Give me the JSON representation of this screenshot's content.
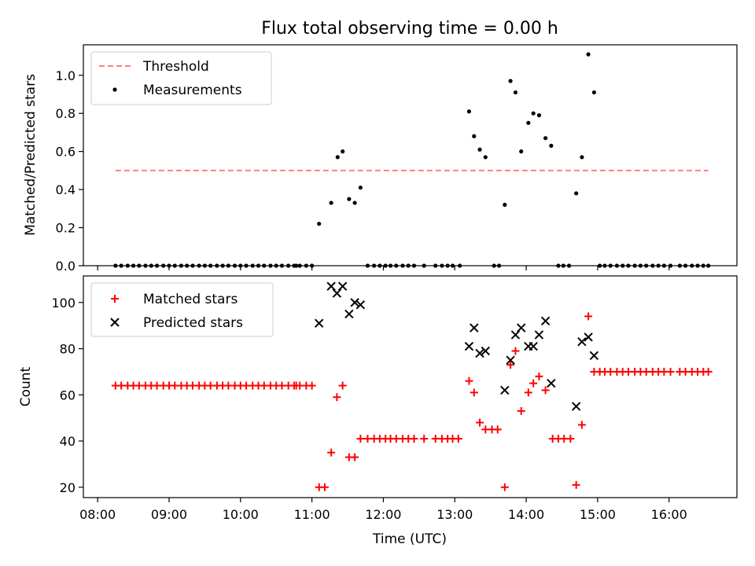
{
  "figure": {
    "title": "Flux total observing time = 0.00 h"
  },
  "chart_data": [
    {
      "type": "scatter",
      "title": "Flux total observing time = 0.00 h",
      "xlabel": "",
      "ylabel": "Matched/Predicted stars",
      "x_unit": "hours since 00:00 UTC",
      "xlim": [
        7.8,
        16.95
      ],
      "ylim": [
        0,
        1.16
      ],
      "y_ticks": [
        "0.0",
        "0.2",
        "0.4",
        "0.6",
        "0.8",
        "1.0"
      ],
      "legend": {
        "position": "upper-left",
        "entries": [
          "Threshold",
          "Measurements"
        ]
      },
      "series": [
        {
          "name": "Threshold",
          "kind": "dashed-line",
          "color": "#ff7f7f",
          "x": [
            8.25,
            16.55
          ],
          "y": [
            0.5,
            0.5
          ]
        },
        {
          "name": "Measurements",
          "kind": "dots",
          "color": "#000000",
          "points": [
            [
              8.25,
              0
            ],
            [
              8.33,
              0
            ],
            [
              8.42,
              0
            ],
            [
              8.5,
              0
            ],
            [
              8.58,
              0
            ],
            [
              8.67,
              0
            ],
            [
              8.75,
              0
            ],
            [
              8.83,
              0
            ],
            [
              8.92,
              0
            ],
            [
              9.0,
              0
            ],
            [
              9.08,
              0
            ],
            [
              9.17,
              0
            ],
            [
              9.25,
              0
            ],
            [
              9.33,
              0
            ],
            [
              9.42,
              0
            ],
            [
              9.5,
              0
            ],
            [
              9.58,
              0
            ],
            [
              9.67,
              0
            ],
            [
              9.75,
              0
            ],
            [
              9.83,
              0
            ],
            [
              9.92,
              0
            ],
            [
              10.0,
              0
            ],
            [
              10.08,
              0
            ],
            [
              10.17,
              0
            ],
            [
              10.25,
              0
            ],
            [
              10.33,
              0
            ],
            [
              10.42,
              0
            ],
            [
              10.5,
              0
            ],
            [
              10.58,
              0
            ],
            [
              10.67,
              0
            ],
            [
              10.75,
              0
            ],
            [
              10.78,
              0
            ],
            [
              10.83,
              0
            ],
            [
              10.92,
              0
            ],
            [
              11.0,
              0
            ],
            [
              11.1,
              0.22
            ],
            [
              11.27,
              0.33
            ],
            [
              11.36,
              0.57
            ],
            [
              11.43,
              0.6
            ],
            [
              11.52,
              0.35
            ],
            [
              11.6,
              0.33
            ],
            [
              11.68,
              0.41
            ],
            [
              11.78,
              0
            ],
            [
              11.87,
              0
            ],
            [
              11.95,
              0
            ],
            [
              12.03,
              0
            ],
            [
              12.1,
              0
            ],
            [
              12.18,
              0
            ],
            [
              12.27,
              0
            ],
            [
              12.35,
              0
            ],
            [
              12.43,
              0
            ],
            [
              12.57,
              0
            ],
            [
              12.73,
              0
            ],
            [
              12.82,
              0
            ],
            [
              12.9,
              0
            ],
            [
              12.97,
              0
            ],
            [
              13.07,
              0
            ],
            [
              13.2,
              0.81
            ],
            [
              13.27,
              0.68
            ],
            [
              13.35,
              0.61
            ],
            [
              13.43,
              0.57
            ],
            [
              13.55,
              0
            ],
            [
              13.62,
              0
            ],
            [
              13.7,
              0.32
            ],
            [
              13.78,
              0.97
            ],
            [
              13.85,
              0.91
            ],
            [
              13.93,
              0.6
            ],
            [
              14.03,
              0.75
            ],
            [
              14.1,
              0.8
            ],
            [
              14.18,
              0.79
            ],
            [
              14.27,
              0.67
            ],
            [
              14.35,
              0.63
            ],
            [
              14.45,
              0
            ],
            [
              14.52,
              0
            ],
            [
              14.6,
              0
            ],
            [
              14.7,
              0.38
            ],
            [
              14.78,
              0.57
            ],
            [
              14.87,
              1.11
            ],
            [
              14.95,
              0.91
            ],
            [
              15.03,
              0
            ],
            [
              15.1,
              0
            ],
            [
              15.18,
              0
            ],
            [
              15.27,
              0
            ],
            [
              15.35,
              0
            ],
            [
              15.43,
              0
            ],
            [
              15.52,
              0
            ],
            [
              15.6,
              0
            ],
            [
              15.68,
              0
            ],
            [
              15.77,
              0
            ],
            [
              15.85,
              0
            ],
            [
              15.93,
              0
            ],
            [
              16.02,
              0
            ],
            [
              16.15,
              0
            ],
            [
              16.23,
              0
            ],
            [
              16.32,
              0
            ],
            [
              16.4,
              0
            ],
            [
              16.48,
              0
            ],
            [
              16.55,
              0
            ]
          ]
        }
      ]
    },
    {
      "type": "scatter",
      "title": "",
      "xlabel": "Time (UTC)",
      "ylabel": "Count",
      "x_unit": "hours since 00:00 UTC",
      "xlim": [
        7.8,
        16.95
      ],
      "ylim": [
        15.5,
        111.5
      ],
      "x_ticks": [
        {
          "value": 8,
          "label": "08:00"
        },
        {
          "value": 9,
          "label": "09:00"
        },
        {
          "value": 10,
          "label": "10:00"
        },
        {
          "value": 11,
          "label": "11:00"
        },
        {
          "value": 12,
          "label": "12:00"
        },
        {
          "value": 13,
          "label": "13:00"
        },
        {
          "value": 14,
          "label": "14:00"
        },
        {
          "value": 15,
          "label": "15:00"
        },
        {
          "value": 16,
          "label": "16:00"
        }
      ],
      "y_ticks": [
        "20",
        "40",
        "60",
        "80",
        "100"
      ],
      "legend": {
        "position": "upper-left",
        "entries": [
          "Matched stars",
          "Predicted stars"
        ]
      },
      "series": [
        {
          "name": "Matched stars",
          "marker": "plus",
          "color": "#ff0000",
          "points": [
            [
              8.25,
              64
            ],
            [
              8.33,
              64
            ],
            [
              8.42,
              64
            ],
            [
              8.5,
              64
            ],
            [
              8.58,
              64
            ],
            [
              8.67,
              64
            ],
            [
              8.75,
              64
            ],
            [
              8.83,
              64
            ],
            [
              8.92,
              64
            ],
            [
              9.0,
              64
            ],
            [
              9.08,
              64
            ],
            [
              9.17,
              64
            ],
            [
              9.25,
              64
            ],
            [
              9.33,
              64
            ],
            [
              9.42,
              64
            ],
            [
              9.5,
              64
            ],
            [
              9.58,
              64
            ],
            [
              9.67,
              64
            ],
            [
              9.75,
              64
            ],
            [
              9.83,
              64
            ],
            [
              9.92,
              64
            ],
            [
              10.0,
              64
            ],
            [
              10.08,
              64
            ],
            [
              10.17,
              64
            ],
            [
              10.25,
              64
            ],
            [
              10.33,
              64
            ],
            [
              10.42,
              64
            ],
            [
              10.5,
              64
            ],
            [
              10.58,
              64
            ],
            [
              10.67,
              64
            ],
            [
              10.75,
              64
            ],
            [
              10.78,
              64
            ],
            [
              10.83,
              64
            ],
            [
              10.92,
              64
            ],
            [
              11.0,
              64
            ],
            [
              11.1,
              20
            ],
            [
              11.18,
              20
            ],
            [
              11.27,
              35
            ],
            [
              11.35,
              59
            ],
            [
              11.43,
              64
            ],
            [
              11.52,
              33
            ],
            [
              11.6,
              33
            ],
            [
              11.68,
              41
            ],
            [
              11.78,
              41
            ],
            [
              11.87,
              41
            ],
            [
              11.95,
              41
            ],
            [
              12.03,
              41
            ],
            [
              12.1,
              41
            ],
            [
              12.18,
              41
            ],
            [
              12.27,
              41
            ],
            [
              12.35,
              41
            ],
            [
              12.43,
              41
            ],
            [
              12.57,
              41
            ],
            [
              12.73,
              41
            ],
            [
              12.82,
              41
            ],
            [
              12.9,
              41
            ],
            [
              12.97,
              41
            ],
            [
              13.05,
              41
            ],
            [
              13.2,
              66
            ],
            [
              13.27,
              61
            ],
            [
              13.35,
              48
            ],
            [
              13.43,
              45
            ],
            [
              13.52,
              45
            ],
            [
              13.6,
              45
            ],
            [
              13.7,
              20
            ],
            [
              13.78,
              73
            ],
            [
              13.85,
              79
            ],
            [
              13.93,
              53
            ],
            [
              14.03,
              61
            ],
            [
              14.1,
              65
            ],
            [
              14.18,
              68
            ],
            [
              14.27,
              62
            ],
            [
              14.37,
              41
            ],
            [
              14.45,
              41
            ],
            [
              14.53,
              41
            ],
            [
              14.62,
              41
            ],
            [
              14.7,
              21
            ],
            [
              14.78,
              47
            ],
            [
              14.87,
              94
            ],
            [
              14.95,
              70
            ],
            [
              15.03,
              70
            ],
            [
              15.1,
              70
            ],
            [
              15.18,
              70
            ],
            [
              15.27,
              70
            ],
            [
              15.35,
              70
            ],
            [
              15.43,
              70
            ],
            [
              15.52,
              70
            ],
            [
              15.6,
              70
            ],
            [
              15.68,
              70
            ],
            [
              15.77,
              70
            ],
            [
              15.85,
              70
            ],
            [
              15.93,
              70
            ],
            [
              16.02,
              70
            ],
            [
              16.15,
              70
            ],
            [
              16.23,
              70
            ],
            [
              16.32,
              70
            ],
            [
              16.4,
              70
            ],
            [
              16.48,
              70
            ],
            [
              16.55,
              70
            ]
          ]
        },
        {
          "name": "Predicted stars",
          "marker": "x",
          "color": "#000000",
          "points": [
            [
              11.1,
              91
            ],
            [
              11.27,
              107
            ],
            [
              11.35,
              104
            ],
            [
              11.43,
              107
            ],
            [
              11.52,
              95
            ],
            [
              11.6,
              100
            ],
            [
              11.68,
              99
            ],
            [
              13.2,
              81
            ],
            [
              13.27,
              89
            ],
            [
              13.35,
              78
            ],
            [
              13.43,
              79
            ],
            [
              13.7,
              62
            ],
            [
              13.78,
              75
            ],
            [
              13.85,
              86
            ],
            [
              13.93,
              89
            ],
            [
              14.03,
              81
            ],
            [
              14.1,
              81
            ],
            [
              14.18,
              86
            ],
            [
              14.27,
              92
            ],
            [
              14.35,
              65
            ],
            [
              14.7,
              55
            ],
            [
              14.78,
              83
            ],
            [
              14.87,
              85
            ],
            [
              14.95,
              77
            ]
          ]
        }
      ]
    }
  ]
}
